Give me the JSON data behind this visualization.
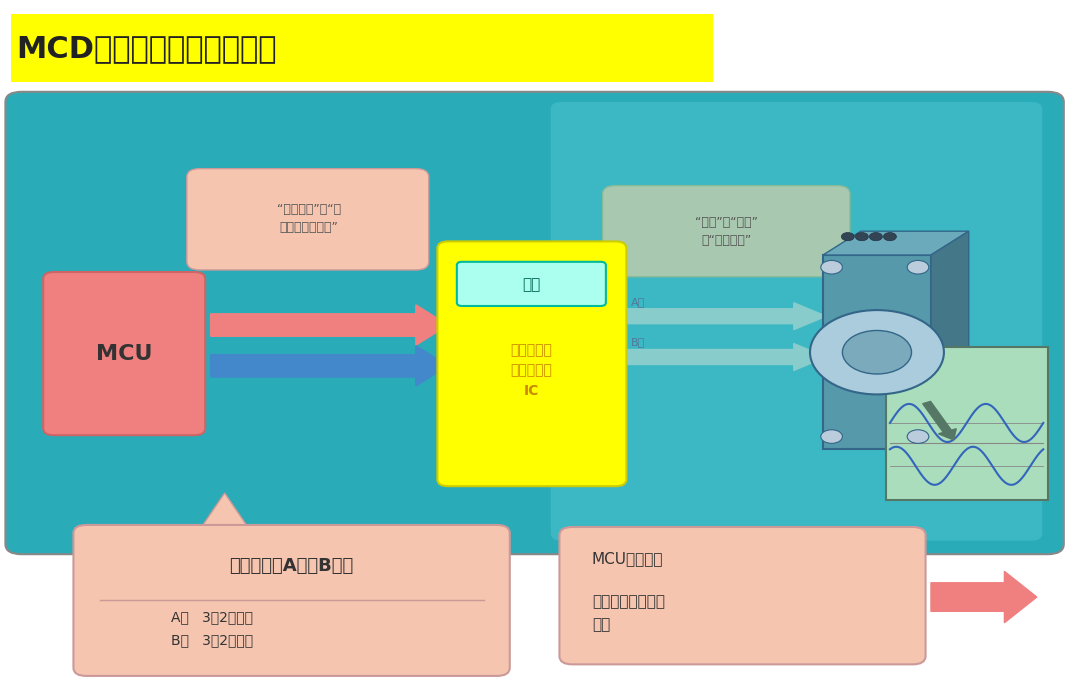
{
  "title": "MCD的接口（相输入类型）",
  "title_bg": "#FFFF00",
  "bg_color": "#FFFFFF",
  "main_box_bg": "#2AACB8",
  "mcu_box_text": "MCU",
  "mcu_box_color": "#F08080",
  "input_box_color": "#FFFF00",
  "bubble_text1": "“重复次数”和“一\n个步距角的时间”",
  "bubble_bg1": "#F5C5B0",
  "bubble_text2": "“方向”、“大小”\n和“电流合成”",
  "bubble_bg2": "#A8C8B0",
  "arrow1_color": "#F08080",
  "arrow2_color": "#4488CC",
  "phase_arrow_color": "#88CCCC",
  "bottom_left_title": "两类信号（A相／B相）",
  "bottom_left_body": "A相   3或2次输入\nB相   3或2次输入",
  "bottom_left_bg": "#F5C5B0",
  "bottom_right_bg": "#F5C5B0",
  "right_arrow_color": "#F08080"
}
